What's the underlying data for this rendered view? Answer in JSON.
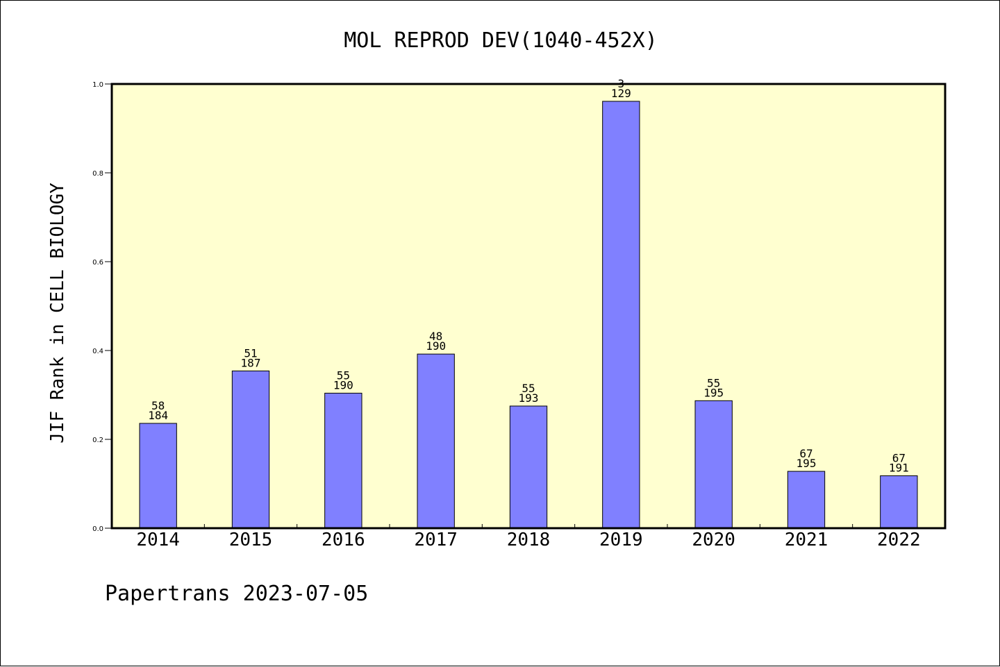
{
  "footer": {
    "text": "Papertrans 2023-07-05"
  },
  "chart_data": {
    "type": "bar",
    "title": "MOL REPROD DEV(1040-452X)",
    "xlabel": "",
    "ylabel": "JIF Rank in CELL BIOLOGY",
    "categories": [
      "2014",
      "2015",
      "2016",
      "2017",
      "2018",
      "2019",
      "2020",
      "2021",
      "2022"
    ],
    "values": [
      0.236,
      0.354,
      0.304,
      0.392,
      0.275,
      0.961,
      0.287,
      0.128,
      0.118
    ],
    "ranks": [
      "58",
      "51",
      "55",
      "48",
      "55",
      "3",
      "55",
      "67",
      "67"
    ],
    "totals": [
      "184",
      "187",
      "190",
      "190",
      "193",
      "129",
      "195",
      "195",
      "191"
    ],
    "ylim": [
      0,
      1.0
    ],
    "yticks": [
      "0.0",
      "0.2",
      "0.4",
      "0.6",
      "0.8",
      "1.0"
    ],
    "colors": {
      "plot_background": "#ffffd0",
      "bar": "#8080ff",
      "frame": "#000000"
    },
    "grid": false,
    "legend": "none"
  }
}
